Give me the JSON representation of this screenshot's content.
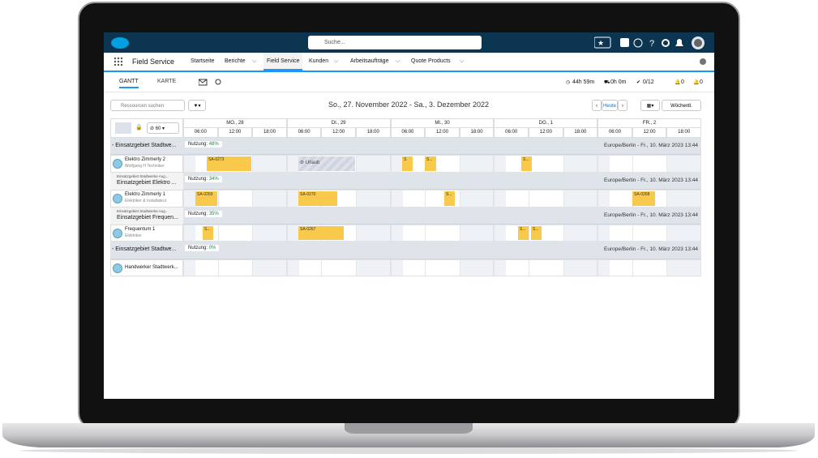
{
  "top_bar": {
    "search_placeholder": "Suche..."
  },
  "app_bar": {
    "app_name": "Field Service",
    "tabs": [
      "Startseite",
      "Berichte",
      "Field Service",
      "Kunden",
      "Arbeitsaufträge",
      "Quote Products"
    ],
    "active_tab": "Field Service"
  },
  "sub_bar": {
    "view_tabs": [
      "GANTT",
      "KARTE"
    ],
    "stats": [
      "44h 59m",
      "0h 0m",
      "0/12",
      "0",
      "0"
    ]
  },
  "toolbar": {
    "resource_search": "Ressourcen suchen",
    "date_range": "So., 27. November 2022 - Sa., 3. Dezember 2022",
    "today": "Heute",
    "view": "Wöchentl.",
    "duration": "60"
  },
  "gantt": {
    "days": [
      "MO., 28",
      "DI., 29",
      "MI., 30",
      "DO., 1",
      "FR., 2"
    ],
    "hours": [
      "06:00",
      "12:00",
      "18:00"
    ],
    "groups": [
      {
        "name": "- Einsatzgebiet Stadtwe...",
        "usage_label": "Nutzung:",
        "usage": "48%",
        "timezone": "Europe/Berlin - Fr., 10. März 2023 13:44",
        "resource": {
          "name": "Elektro Zimmerly 2",
          "role": "Wolfgang H Techniker"
        },
        "bars": [
          "SA-0273",
          "Urlaub",
          "S",
          "S...",
          "S..."
        ]
      },
      {
        "parent": "Einsatzgebiet Stadtwerke Aug...",
        "name": "Einsatzgebiet Elektro ...",
        "usage_label": "Nutzung:",
        "usage": "34%",
        "timezone": "Europe/Berlin - Fr., 10. März 2023 13:44",
        "resource": {
          "name": "Elektro Zimmerly 1",
          "role": "Elektriker & Installateur"
        },
        "bars": [
          "SA-0269",
          "SA-0270",
          "S...",
          "SA-0268"
        ]
      },
      {
        "parent": "Einsatzgebiet Stadtwerke Aug...",
        "name": "Einsatzgebiet Frequen...",
        "usage_label": "Nutzung:",
        "usage": "35%",
        "timezone": "Europe/Berlin - Fr., 10. März 2023 13:44",
        "resource": {
          "name": "Frequentum 1",
          "role": "Elektriker"
        },
        "bars": [
          "S...",
          "SA-0267",
          "S...",
          "S..."
        ]
      },
      {
        "name": "- Einsatzgebiet Stadtwe...",
        "usage_label": "Nutzung:",
        "usage": "0%",
        "timezone": "Europe/Berlin - Fr., 10. März 2023 13:44",
        "resource": {
          "name": "Handwerker Stadtwerk..."
        },
        "bars": []
      }
    ]
  }
}
